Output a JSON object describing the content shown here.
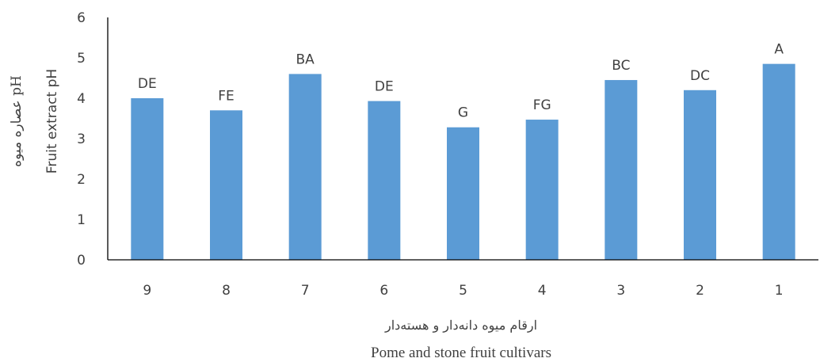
{
  "chart_data": {
    "type": "bar",
    "categories": [
      "9",
      "8",
      "7",
      "6",
      "5",
      "4",
      "3",
      "2",
      "1"
    ],
    "values": [
      4.0,
      3.7,
      4.6,
      3.93,
      3.28,
      3.47,
      4.45,
      4.2,
      4.85
    ],
    "data_labels": [
      "DE",
      "FE",
      "BA",
      "DE",
      "G",
      "FG",
      "BC",
      "DC",
      "A"
    ],
    "ylabel_fa": "pH عصاره میوه",
    "ylabel_en": "Fruit extract pH",
    "xlabel_fa": "ارقام میوه دانه‌دار و هسته‌دار",
    "xlabel_en": "Pome and stone fruit cultivars",
    "ylim": [
      0,
      6
    ],
    "yticks": [
      0,
      1,
      2,
      3,
      4,
      5,
      6
    ],
    "bar_color": "#5b9bd5",
    "grid": false
  }
}
